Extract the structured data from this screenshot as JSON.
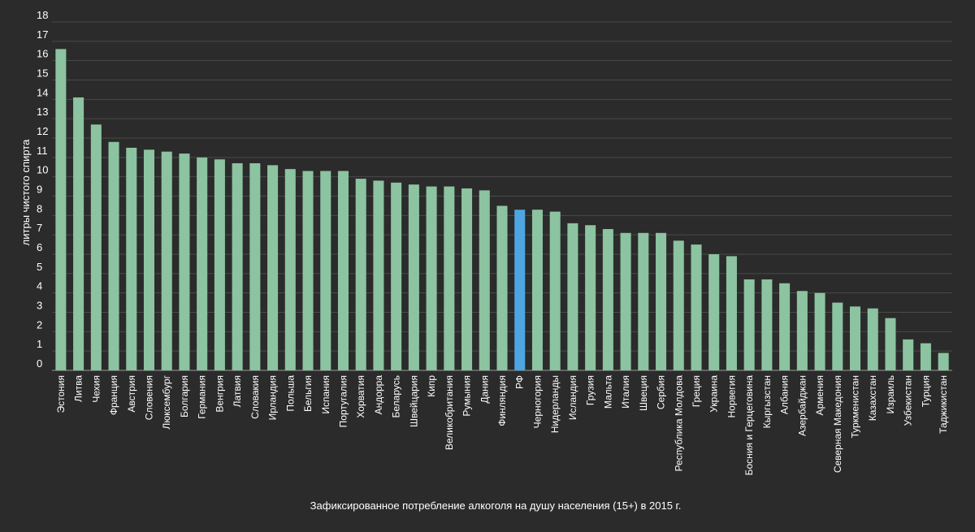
{
  "chart_data": {
    "type": "bar",
    "title": "",
    "xlabel": "Зафиксированное потребление алкоголя на душу населения (15+) в 2015 г.",
    "ylabel": "литры чистого спирта",
    "ylim": [
      0,
      18
    ],
    "yticks": [
      0,
      1,
      2,
      3,
      4,
      5,
      6,
      7,
      8,
      9,
      10,
      11,
      12,
      13,
      14,
      15,
      16,
      17,
      18
    ],
    "grid": true,
    "legend": "none",
    "colors": {
      "default": "#8cc3a0",
      "highlight": "#4da6e0"
    },
    "highlight_category": "РФ",
    "categories": [
      "Эстония",
      "Литва",
      "Чехия",
      "Франция",
      "Австрия",
      "Словения",
      "Люксембург",
      "Болгария",
      "Германия",
      "Венгрия",
      "Латвия",
      "Словакия",
      "Ирландия",
      "Польша",
      "Бельгия",
      "Испания",
      "Португалия",
      "Хорватия",
      "Андорра",
      "Беларусь",
      "Швейцария",
      "Кипр",
      "Великобритания",
      "Румыния",
      "Дания",
      "Финляндия",
      "РФ",
      "Черногория",
      "Нидерланды",
      "Исландия",
      "Грузия",
      "Мальта",
      "Италия",
      "Швеция",
      "Сербия",
      "Республика Молдова",
      "Греция",
      "Украина",
      "Норвегия",
      "Босния и Герцеговина",
      "Кыргызстан",
      "Албания",
      "Азербайджан",
      "Армения",
      "Северная Македония",
      "Туркменистан",
      "Казахстан",
      "Израиль",
      "Узбекистан",
      "Турция",
      "Таджикистан"
    ],
    "values": [
      16.6,
      14.1,
      12.7,
      11.8,
      11.5,
      11.4,
      11.3,
      11.2,
      11.0,
      10.9,
      10.7,
      10.7,
      10.6,
      10.4,
      10.3,
      10.3,
      10.3,
      9.9,
      9.8,
      9.7,
      9.6,
      9.5,
      9.5,
      9.4,
      9.3,
      8.5,
      8.3,
      8.3,
      8.2,
      7.6,
      7.5,
      7.3,
      7.1,
      7.1,
      7.1,
      6.7,
      6.5,
      6.0,
      5.9,
      4.7,
      4.7,
      4.5,
      4.1,
      4.0,
      3.5,
      3.3,
      3.2,
      2.7,
      1.6,
      1.4,
      0.9
    ]
  }
}
